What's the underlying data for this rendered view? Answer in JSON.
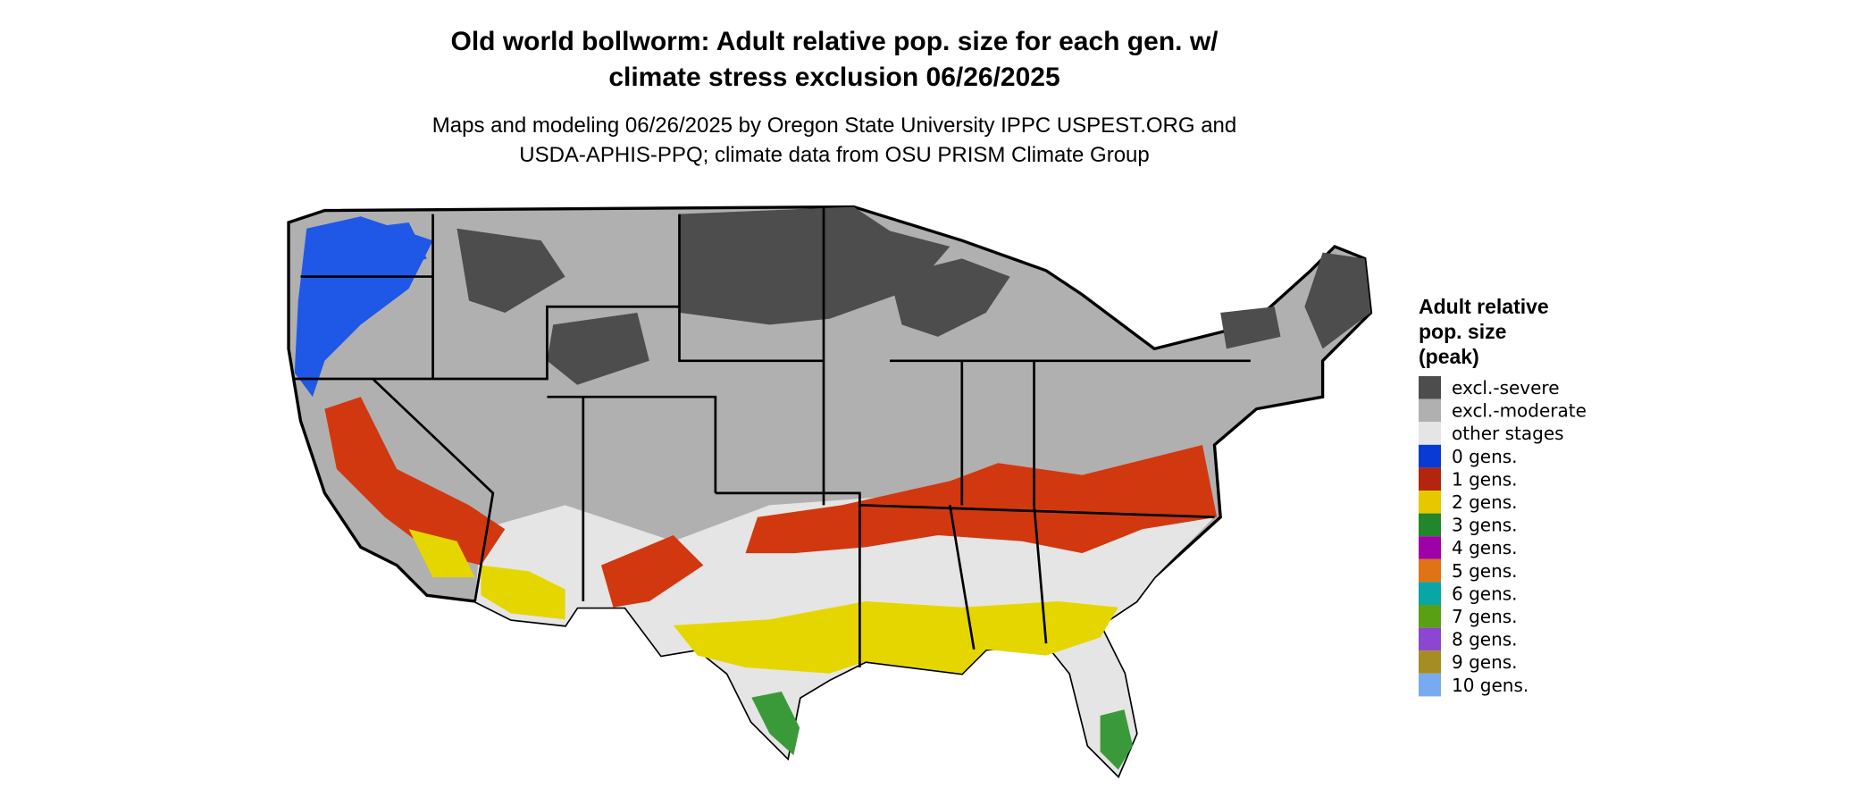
{
  "title": [
    "Old world bollworm: Adult relative pop. size for each gen. w/",
    "climate stress exclusion 06/26/2025"
  ],
  "subtitle": [
    "Maps and modeling 06/26/2025 by Oregon State University IPPC USPEST.ORG and",
    "USDA-APHIS-PPQ; climate data from OSU PRISM Climate Group"
  ],
  "legend": {
    "title": [
      "Adult relative",
      "pop. size",
      "(peak)"
    ],
    "items": [
      {
        "label": "excl.-severe",
        "color": "#4d4d4d"
      },
      {
        "label": "excl.-moderate",
        "color": "#b0b0b0"
      },
      {
        "label": "other stages",
        "color": "#e5e5e5"
      },
      {
        "label": "0 gens.",
        "color": "#0a3ad6"
      },
      {
        "label": "1 gens.",
        "color": "#b3250f"
      },
      {
        "label": "2 gens.",
        "color": "#e6c800"
      },
      {
        "label": "3 gens.",
        "color": "#23862a"
      },
      {
        "label": "4 gens.",
        "color": "#a000a8"
      },
      {
        "label": "5 gens.",
        "color": "#e07314"
      },
      {
        "label": "6 gens.",
        "color": "#0aa5a5"
      },
      {
        "label": "7 gens.",
        "color": "#5aa014"
      },
      {
        "label": "8 gens.",
        "color": "#8c46d2"
      },
      {
        "label": "9 gens.",
        "color": "#a58c23"
      },
      {
        "label": "10 gens.",
        "color": "#78aaf0"
      }
    ]
  }
}
